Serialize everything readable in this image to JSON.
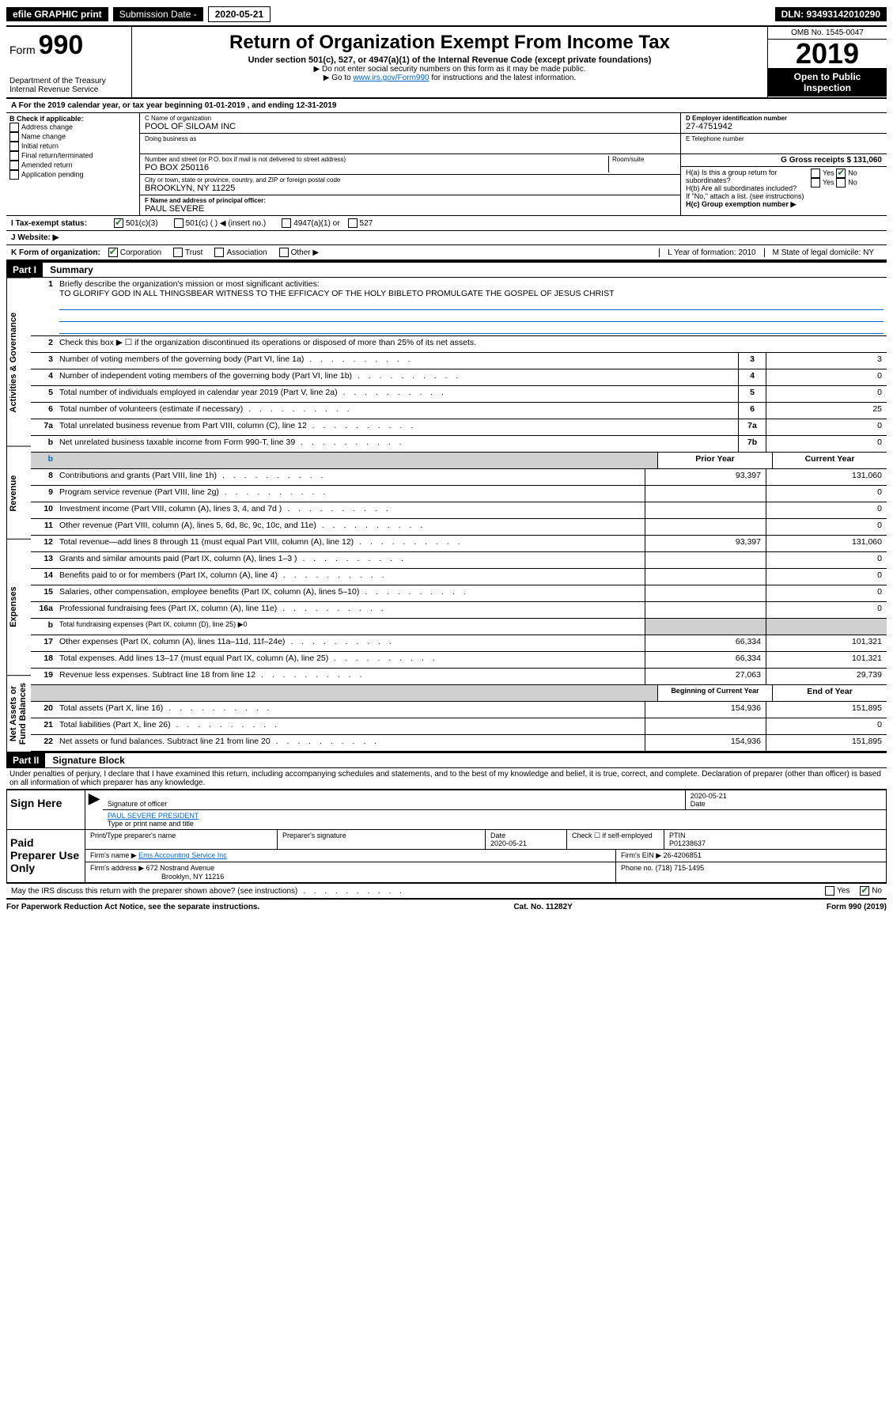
{
  "topbar": {
    "efile": "efile GRAPHIC print",
    "sub_label": "Submission Date - ",
    "sub_date": "2020-05-21",
    "dln": "DLN: 93493142010290"
  },
  "header": {
    "form": "Form",
    "form_num": "990",
    "dept": "Department of the Treasury",
    "irs": "Internal Revenue Service",
    "title": "Return of Organization Exempt From Income Tax",
    "subtitle": "Under section 501(c), 527, or 4947(a)(1) of the Internal Revenue Code (except private foundations)",
    "note1": "▶ Do not enter social security numbers on this form as it may be made public.",
    "note2_pre": "▶ Go to ",
    "note2_link": "www.irs.gov/Form990",
    "note2_post": " for instructions and the latest information.",
    "omb": "OMB No. 1545-0047",
    "year": "2019",
    "open": "Open to Public Inspection"
  },
  "period": {
    "text": "A For the 2019 calendar year, or tax year beginning 01-01-2019   , and ending 12-31-2019"
  },
  "checkboxes": {
    "title": "B Check if applicable:",
    "items": [
      "Address change",
      "Name change",
      "Initial return",
      "Final return/terminated",
      "Amended return",
      "Application pending"
    ]
  },
  "entity": {
    "c_label": "C Name of organization",
    "c_name": "POOL OF SILOAM INC",
    "dba_label": "Doing business as",
    "addr_label": "Number and street (or P.O. box if mail is not delivered to street address)",
    "room_label": "Room/suite",
    "addr": "PO BOX 250116",
    "city_label": "City or town, state or province, country, and ZIP or foreign postal code",
    "city": "BROOKLYN, NY  11225",
    "f_label": "F Name and address of principal officer:",
    "f_name": "PAUL SEVERE",
    "d_label": "D Employer identification number",
    "d_ein": "27-4751942",
    "e_label": "E Telephone number",
    "g_label": "G Gross receipts $ 131,060",
    "ha_label": "H(a)  Is this a group return for subordinates?",
    "hb_label": "H(b)  Are all subordinates included?",
    "hb_note": "If \"No,\" attach a list. (see instructions)",
    "hc_label": "H(c)  Group exemption number ▶",
    "yes": "Yes",
    "no": "No"
  },
  "status": {
    "i_label": "I   Tax-exempt status:",
    "opts": [
      "501(c)(3)",
      "501(c) (  ) ◀ (insert no.)",
      "4947(a)(1) or",
      "527"
    ],
    "j_label": "J   Website: ▶"
  },
  "korg": {
    "k_label": "K Form of organization:",
    "opts": [
      "Corporation",
      "Trust",
      "Association",
      "Other ▶"
    ],
    "l_label": "L Year of formation: 2010",
    "m_label": "M State of legal domicile: NY"
  },
  "part1": {
    "header": "Part I",
    "title": "Summary"
  },
  "summary": {
    "sections": [
      {
        "label": "Activities & Governance",
        "rows": [
          {
            "num": "1",
            "desc": "Briefly describe the organization's mission or most significant activities:",
            "mission": "TO GLORIFY GOD IN ALL THINGSBEAR WITNESS TO THE EFFICACY OF THE HOLY BIBLETO PROMULGATE THE GOSPEL OF JESUS CHRIST"
          },
          {
            "num": "2",
            "desc": "Check this box ▶ ☐  if the organization discontinued its operations or disposed of more than 25% of its net assets."
          },
          {
            "num": "3",
            "desc": "Number of voting members of the governing body (Part VI, line 1a)",
            "box": "3",
            "val": "3"
          },
          {
            "num": "4",
            "desc": "Number of independent voting members of the governing body (Part VI, line 1b)",
            "box": "4",
            "val": "0"
          },
          {
            "num": "5",
            "desc": "Total number of individuals employed in calendar year 2019 (Part V, line 2a)",
            "box": "5",
            "val": "0"
          },
          {
            "num": "6",
            "desc": "Total number of volunteers (estimate if necessary)",
            "box": "6",
            "val": "25"
          },
          {
            "num": "7a",
            "desc": "Total unrelated business revenue from Part VIII, column (C), line 12",
            "box": "7a",
            "val": "0"
          },
          {
            "num": "b",
            "desc": "Net unrelated business taxable income from Form 990-T, line 39",
            "box": "7b",
            "val": "0"
          }
        ]
      },
      {
        "label": "Revenue",
        "header": {
          "prior": "Prior Year",
          "current": "Current Year"
        },
        "rows": [
          {
            "num": "8",
            "desc": "Contributions and grants (Part VIII, line 1h)",
            "prior": "93,397",
            "current": "131,060"
          },
          {
            "num": "9",
            "desc": "Program service revenue (Part VIII, line 2g)",
            "prior": "",
            "current": "0"
          },
          {
            "num": "10",
            "desc": "Investment income (Part VIII, column (A), lines 3, 4, and 7d )",
            "prior": "",
            "current": "0"
          },
          {
            "num": "11",
            "desc": "Other revenue (Part VIII, column (A), lines 5, 6d, 8c, 9c, 10c, and 11e)",
            "prior": "",
            "current": "0"
          },
          {
            "num": "12",
            "desc": "Total revenue—add lines 8 through 11 (must equal Part VIII, column (A), line 12)",
            "prior": "93,397",
            "current": "131,060"
          }
        ]
      },
      {
        "label": "Expenses",
        "rows": [
          {
            "num": "13",
            "desc": "Grants and similar amounts paid (Part IX, column (A), lines 1–3 )",
            "prior": "",
            "current": "0"
          },
          {
            "num": "14",
            "desc": "Benefits paid to or for members (Part IX, column (A), line 4)",
            "prior": "",
            "current": "0"
          },
          {
            "num": "15",
            "desc": "Salaries, other compensation, employee benefits (Part IX, column (A), lines 5–10)",
            "prior": "",
            "current": "0"
          },
          {
            "num": "16a",
            "desc": "Professional fundraising fees (Part IX, column (A), line 11e)",
            "prior": "",
            "current": "0"
          },
          {
            "num": "b",
            "desc": "Total fundraising expenses (Part IX, column (D), line 25) ▶0",
            "shaded": true
          },
          {
            "num": "17",
            "desc": "Other expenses (Part IX, column (A), lines 11a–11d, 11f–24e)",
            "prior": "66,334",
            "current": "101,321"
          },
          {
            "num": "18",
            "desc": "Total expenses. Add lines 13–17 (must equal Part IX, column (A), line 25)",
            "prior": "66,334",
            "current": "101,321"
          },
          {
            "num": "19",
            "desc": "Revenue less expenses. Subtract line 18 from line 12",
            "prior": "27,063",
            "current": "29,739"
          }
        ]
      },
      {
        "label": "Net Assets or Fund Balances",
        "header": {
          "prior": "Beginning of Current Year",
          "current": "End of Year"
        },
        "rows": [
          {
            "num": "20",
            "desc": "Total assets (Part X, line 16)",
            "prior": "154,936",
            "current": "151,895"
          },
          {
            "num": "21",
            "desc": "Total liabilities (Part X, line 26)",
            "prior": "",
            "current": "0"
          },
          {
            "num": "22",
            "desc": "Net assets or fund balances. Subtract line 21 from line 20",
            "prior": "154,936",
            "current": "151,895"
          }
        ]
      }
    ]
  },
  "part2": {
    "header": "Part II",
    "title": "Signature Block",
    "penalty": "Under penalties of perjury, I declare that I have examined this return, including accompanying schedules and statements, and to the best of my knowledge and belief, it is true, correct, and complete. Declaration of preparer (other than officer) is based on all information of which preparer has any knowledge."
  },
  "sign": {
    "sign_here": "Sign Here",
    "sig_officer": "Signature of officer",
    "date": "2020-05-21",
    "date_label": "Date",
    "name": "PAUL SEVERE  PRESIDENT",
    "name_label": "Type or print name and title"
  },
  "preparer": {
    "label": "Paid Preparer Use Only",
    "col1": "Print/Type preparer's name",
    "col2": "Preparer's signature",
    "col3": "Date",
    "col3_val": "2020-05-21",
    "col4": "Check ☐ if self-employed",
    "col5": "PTIN",
    "col5_val": "P01238637",
    "firm_name_label": "Firm's name    ▶",
    "firm_name": "Ems Accounting Service Inc",
    "firm_ein_label": "Firm's EIN ▶",
    "firm_ein": "26-4206851",
    "firm_addr_label": "Firm's address ▶",
    "firm_addr": "672 Nostrand Avenue",
    "firm_city": "Brooklyn, NY  11216",
    "phone_label": "Phone no.",
    "phone": "(718) 715-1495"
  },
  "discuss": {
    "text": "May the IRS discuss this return with the preparer shown above? (see instructions)",
    "yes": "Yes",
    "no": "No"
  },
  "footer": {
    "left": "For Paperwork Reduction Act Notice, see the separate instructions.",
    "mid": "Cat. No. 11282Y",
    "right": "Form 990 (2019)"
  }
}
